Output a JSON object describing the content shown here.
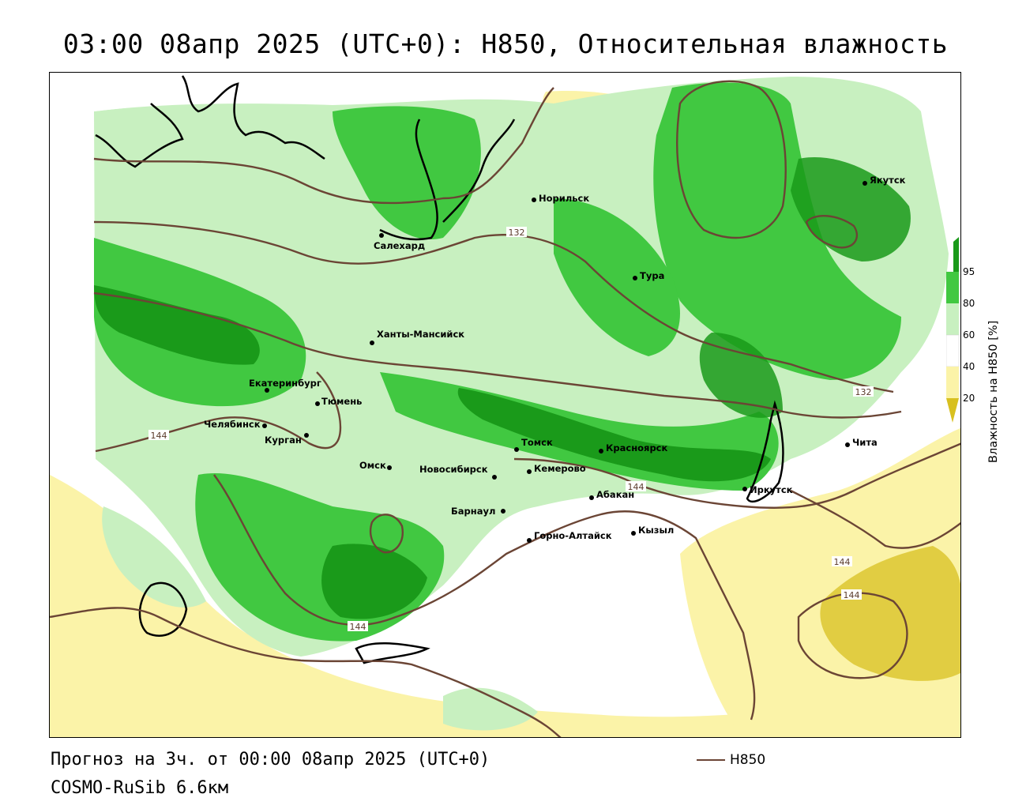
{
  "title": "03:00 08апр 2025 (UTC+0): H850, Относительная влажность",
  "footer": {
    "forecast": "Прогноз на 3ч. от 00:00 08апр 2025 (UTC+0)",
    "model": "COSMO-RuSib 6.6км"
  },
  "legend": {
    "line_label": "H850",
    "line_color": "#6b4535",
    "colorbar_title": "Влажность на H850 [%]",
    "ticks": [
      "20",
      "40",
      "60",
      "80",
      "95"
    ],
    "colors": {
      "very_dry": "#d8c020",
      "dry": "#fbf3a8",
      "neutral": "#ffffff",
      "moist": "#c8f0c0",
      "wet": "#41c841",
      "very_wet": "#1a9a1a"
    }
  },
  "contour_labels": {
    "c132_north": "132",
    "c132_east": "132",
    "c144_west": "144",
    "c144_center": "144",
    "c144_south": "144",
    "c144_se1": "144",
    "c144_se2": "144"
  },
  "cities": {
    "norilsk": "Норильск",
    "yakutsk": "Якутск",
    "salekhard": "Салехард",
    "tura": "Тура",
    "khanty": "Ханты-Мансийск",
    "yekaterinburg": "Екатеринбург",
    "tyumen": "Тюмень",
    "chelyabinsk": "Челябинск",
    "kurgan": "Курган",
    "tomsk": "Томск",
    "krasnoyarsk": "Красноярск",
    "chita": "Чита",
    "omsk": "Омск",
    "novosibirsk": "Новосибирск",
    "kemerovo": "Кемерово",
    "abakan": "Абакан",
    "irkutsk": "Иркутск",
    "barnaul": "Барнаул",
    "gorno_altaysk": "Горно-Алтайск",
    "kyzyl": "Кызыл"
  }
}
